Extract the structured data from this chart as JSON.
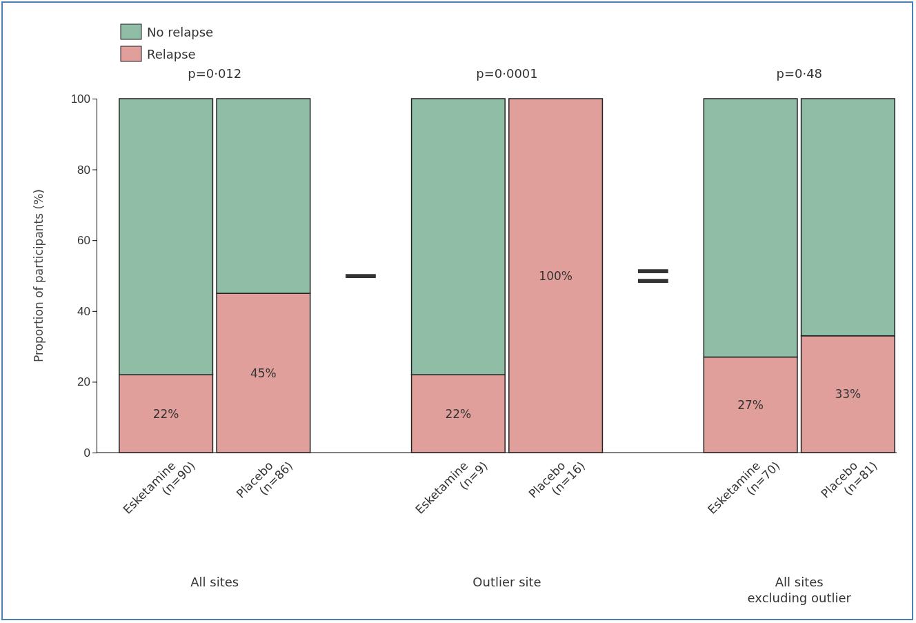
{
  "chart_data": {
    "type": "bar",
    "stacked": true,
    "ylabel": "Proportion of participants (%)",
    "categories": [
      "Esketamine (n=90)",
      "Placebo (n=86)",
      "Esketamine (n=9)",
      "Placebo (n=16)",
      "Esketamine (n=70)",
      "Placebo (n=81)"
    ],
    "series": [
      {
        "name": "Relapse",
        "color": "#e09f9b",
        "values": [
          22,
          45,
          22,
          100,
          27,
          33
        ],
        "value_labels": [
          "22%",
          "45%",
          "22%",
          "100%",
          "27%",
          "33%"
        ]
      },
      {
        "name": "No relapse",
        "color": "#8fbda6",
        "values": [
          78,
          55,
          78,
          0,
          73,
          67
        ]
      }
    ],
    "ylim": [
      0,
      100
    ],
    "yticks": [
      0,
      20,
      40,
      60,
      80,
      100
    ],
    "grid": false,
    "legend": "top left",
    "annotations": [
      "p=0·012",
      "p=0·0001",
      "p=0·48",
      "All sites",
      "Outlier site",
      "All sites excluding outlier",
      "−",
      "="
    ]
  }
}
